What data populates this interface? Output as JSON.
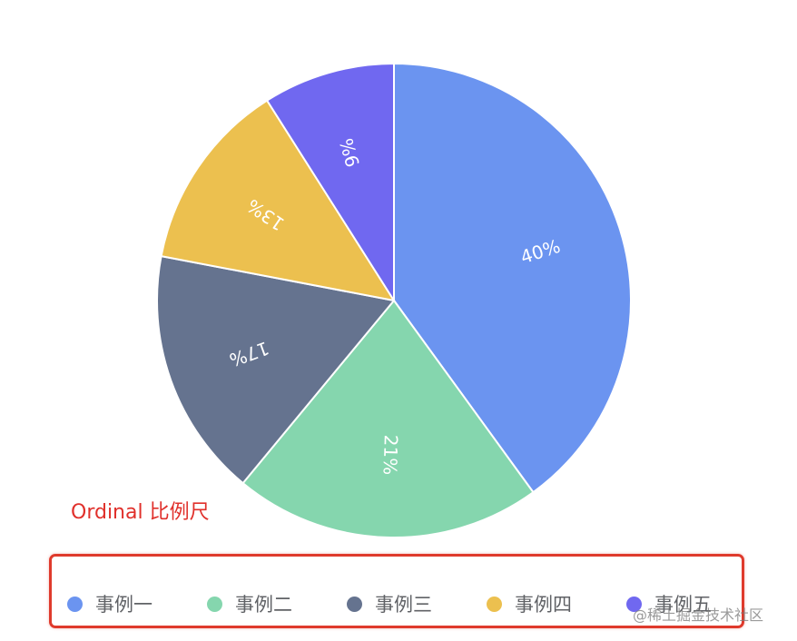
{
  "chart_data": {
    "type": "pie",
    "categories": [
      "事例一",
      "事例二",
      "事例三",
      "事例四",
      "事例五"
    ],
    "values": [
      40,
      21,
      17,
      13,
      9
    ],
    "data_labels": [
      "40%",
      "21%",
      "17%",
      "13%",
      "9%"
    ],
    "colors": [
      "#6b94f0",
      "#85d6ae",
      "#65738f",
      "#ecc04f",
      "#7068f0"
    ],
    "start_angle": "12 o'clock",
    "direction": "clockwise",
    "legend_position": "bottom"
  },
  "annotation": {
    "text": "Ordinal 比例尺"
  },
  "watermark": {
    "text": "@稀土掘金技术社区"
  }
}
